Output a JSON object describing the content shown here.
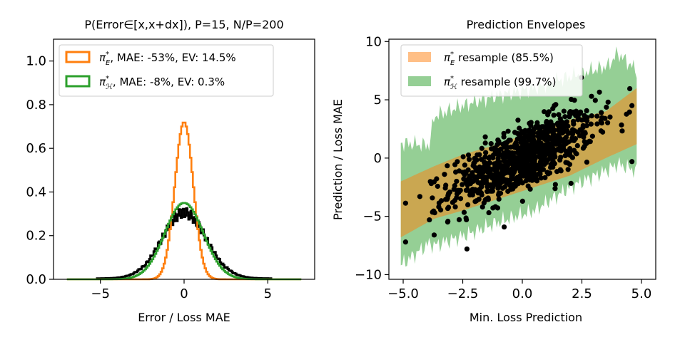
{
  "chart_data": [
    {
      "type": "line",
      "subtype": "step-histogram",
      "title": "P(Error∈[x,x+dx]), P=15, N/P=200",
      "xlabel": "Error / Loss MAE",
      "ylabel": "",
      "xlim": [
        -7.8,
        7.8
      ],
      "ylim": [
        0,
        1.1
      ],
      "xticks": [
        -5,
        0,
        5
      ],
      "xtick_labels": [
        "−5",
        "0",
        "5"
      ],
      "yticks": [
        0.0,
        0.2,
        0.4,
        0.6,
        0.8,
        1.0
      ],
      "ytick_labels": [
        "0.0",
        "0.2",
        "0.4",
        "0.6",
        "0.8",
        "1.0"
      ],
      "legend_position": "top-left",
      "series": [
        {
          "name": "black-histogram",
          "legend": "",
          "color": "#000000",
          "shape": {
            "kind": "gaussian",
            "mean": 0.0,
            "sigma": 1.33,
            "peak": 0.305,
            "range": [
              -5.2,
              5.2
            ]
          }
        },
        {
          "name": "pi-E",
          "legend_symbol": "π",
          "legend_sub": "E",
          "legend_text": ", MAE: -53%, EV: 14.5%",
          "color": "#ff7f0e",
          "shape": {
            "kind": "gaussian",
            "mean": 0.0,
            "sigma": 0.55,
            "peak": 0.72,
            "range": [
              -7.0,
              7.0
            ]
          }
        },
        {
          "name": "pi-H",
          "legend_symbol": "π",
          "legend_sub": "ℋ",
          "legend_text": ", MAE: -8%, EV: 0.3%",
          "color": "#2ca02c",
          "shape": {
            "kind": "gaussian",
            "mean": 0.0,
            "sigma": 1.15,
            "peak": 0.35,
            "range": [
              -7.0,
              7.0
            ]
          }
        }
      ]
    },
    {
      "type": "scatter",
      "title": "Prediction Envelopes",
      "xlabel": "Min. Loss Prediction",
      "ylabel": "Prediction / Loss MAE",
      "xlim": [
        -5.6,
        5.6
      ],
      "ylim": [
        -10.4,
        10.2
      ],
      "xticks": [
        -5,
        -2.5,
        0,
        2.5,
        5
      ],
      "xtick_labels": [
        "−5.0",
        "−2.5",
        "0.0",
        "2.5",
        "5.0"
      ],
      "yticks": [
        -10,
        -5,
        0,
        5,
        10
      ],
      "ytick_labels": [
        "−10",
        "−5",
        "0",
        "5",
        "10"
      ],
      "legend_position": "top-left",
      "envelopes": [
        {
          "name": "pi-H-envelope",
          "legend_symbol": "π",
          "legend_sub": "ℋ",
          "legend_text": " resample (99.7%)",
          "color": "#2ca02c",
          "opacity": 0.5,
          "x": [
            -5.1,
            -3.9,
            -3.7,
            -2.5,
            -1.0,
            0.5,
            2.0,
            3.6,
            4.0,
            4.8
          ],
          "lower": [
            -9.2,
            -7.3,
            -7.5,
            -6.7,
            -5.5,
            -4.5,
            -2.5,
            -1.0,
            -0.5,
            -1.1
          ],
          "upper": [
            1.3,
            1.1,
            3.6,
            4.5,
            5.4,
            6.0,
            7.0,
            7.9,
            9.0,
            7.5
          ]
        },
        {
          "name": "pi-E-envelope",
          "legend_symbol": "π",
          "legend_sub": "E",
          "legend_text": " resample (85.5%)",
          "color": "#ff7f0e",
          "opacity": 0.5,
          "x": [
            -5.1,
            -3.7,
            -2.5,
            -1.0,
            0.5,
            2.0,
            3.5,
            4.8
          ],
          "lower": [
            -6.8,
            -5.2,
            -4.5,
            -3.5,
            -2.5,
            -1.5,
            0.0,
            1.2
          ],
          "upper": [
            -2.0,
            -0.7,
            0.3,
            1.2,
            2.3,
            3.3,
            4.0,
            6.0
          ]
        }
      ],
      "points": {
        "color": "#000000",
        "count": 900,
        "slope": 0.92,
        "noise_sd": 1.35,
        "x_sd": 1.5,
        "x_range": [
          -4.9,
          4.6
        ]
      },
      "outliers": [
        [
          -4.9,
          -7.2
        ],
        [
          -4.3,
          -3.3
        ],
        [
          -3.9,
          -5.3
        ],
        [
          -3.7,
          -6.6
        ],
        [
          4.6,
          4.5
        ],
        [
          4.6,
          -0.3
        ],
        [
          3.3,
          3.2
        ],
        [
          3.6,
          4.8
        ]
      ]
    }
  ]
}
